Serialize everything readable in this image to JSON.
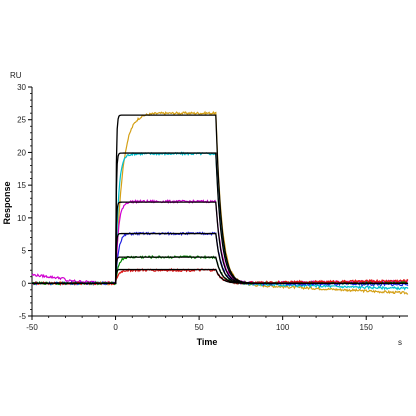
{
  "chart_data": {
    "type": "line",
    "title": "",
    "xlabel": "Time",
    "ylabel": "Response",
    "x_unit": "s",
    "y_unit": "RU",
    "xlim": [
      -50,
      175
    ],
    "ylim": [
      -5,
      30
    ],
    "x_ticks": [
      "-50",
      "0",
      "50",
      "100",
      "150"
    ],
    "y_ticks": [
      "-5",
      "0",
      "5",
      "10",
      "15",
      "20",
      "25",
      "30"
    ],
    "x_tick_values": [
      -50,
      0,
      50,
      100,
      150
    ],
    "y_tick_values": [
      -5,
      0,
      5,
      10,
      15,
      20,
      25,
      30
    ],
    "grid": false,
    "legend": "none",
    "association_start": 0,
    "dissociation_start": 60,
    "series": [
      {
        "color": "#d4a017",
        "plateau": 26.0,
        "baseline_end": -1.5
      },
      {
        "color": "#00c0d0",
        "plateau": 19.8,
        "baseline_end": -0.8
      },
      {
        "color": "#d000d0",
        "plateau": 12.5,
        "baseline_end": 0.3
      },
      {
        "color": "#2020e0",
        "plateau": 7.6,
        "baseline_end": -0.2
      },
      {
        "color": "#008a00",
        "plateau": 4.0,
        "baseline_end": 0.1
      },
      {
        "color": "#e01010",
        "plateau": 2.0,
        "baseline_end": 0.4
      }
    ],
    "fit_series": [
      {
        "color": "#000000",
        "plateau": 25.7
      },
      {
        "color": "#000000",
        "plateau": 19.9
      },
      {
        "color": "#000000",
        "plateau": 12.4
      },
      {
        "color": "#000000",
        "plateau": 7.6
      },
      {
        "color": "#000000",
        "plateau": 4.0
      },
      {
        "color": "#000000",
        "plateau": 2.1
      }
    ]
  }
}
